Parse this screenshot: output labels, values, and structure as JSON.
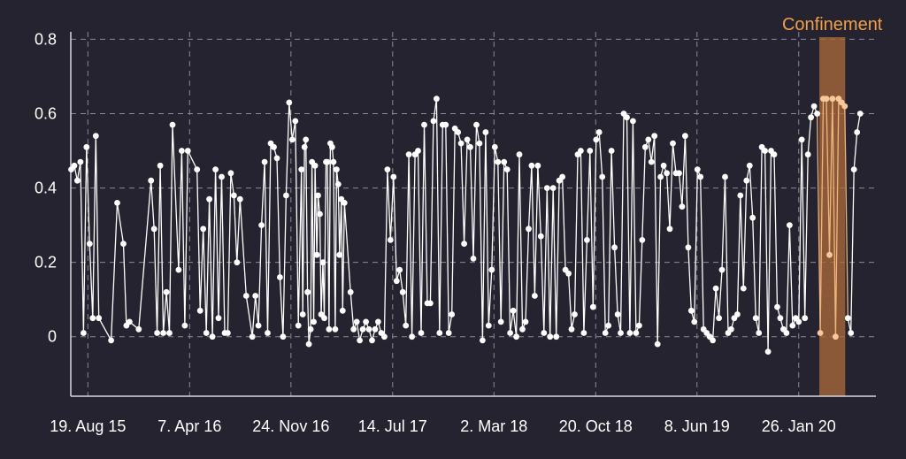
{
  "chart_data": {
    "type": "line",
    "title": "",
    "xlabel": "",
    "ylabel": "",
    "ylim": [
      -0.16,
      0.82
    ],
    "y_ticks": [
      "0",
      "0.2",
      "0.4",
      "0.6",
      "0.8"
    ],
    "y_tick_values": [
      0,
      0.2,
      0.4,
      0.6,
      0.8
    ],
    "x_ticks": [
      "19. Aug 15",
      "7. Apr 16",
      "24. Nov 16",
      "14. Jul 17",
      "2. Mar 18",
      "20. Oct 18",
      "8. Jun 19",
      "26. Jan 20"
    ],
    "x_tick_dates": [
      "2015-08-19",
      "2016-04-07",
      "2016-11-24",
      "2017-07-14",
      "2018-03-02",
      "2018-10-20",
      "2019-06-08",
      "2020-01-26"
    ],
    "xlim": [
      "2015-07-11",
      "2020-07-20"
    ],
    "grid": true,
    "band": {
      "label": "Confinement",
      "start": "2020-03-13",
      "end": "2020-05-11",
      "color": "#a8693a"
    },
    "series": [
      {
        "line_color": "#ffffff",
        "highlight_color": "#f7c99a",
        "points": [
          [
            "2015-07-12",
            0.45
          ],
          [
            "2015-07-19",
            0.46
          ],
          [
            "2015-07-26",
            0.42
          ],
          [
            "2015-08-02",
            0.47
          ],
          [
            "2015-08-09",
            0.01
          ],
          [
            "2015-08-16",
            0.51
          ],
          [
            "2015-08-23",
            0.25
          ],
          [
            "2015-08-30",
            0.05
          ],
          [
            "2015-09-06",
            0.54
          ],
          [
            "2015-09-13",
            0.05
          ],
          [
            "2015-10-11",
            -0.01
          ],
          [
            "2015-10-25",
            0.36
          ],
          [
            "2015-11-08",
            0.25
          ],
          [
            "2015-11-15",
            0.03
          ],
          [
            "2015-11-22",
            0.04
          ],
          [
            "2015-12-13",
            0.02
          ],
          [
            "2016-01-10",
            0.42
          ],
          [
            "2016-01-17",
            0.29
          ],
          [
            "2016-01-24",
            0.01
          ],
          [
            "2016-01-31",
            0.46
          ],
          [
            "2016-02-07",
            0.01
          ],
          [
            "2016-02-14",
            0.12
          ],
          [
            "2016-02-21",
            0.01
          ],
          [
            "2016-02-28",
            0.57
          ],
          [
            "2016-03-13",
            0.18
          ],
          [
            "2016-03-20",
            0.5
          ],
          [
            "2016-03-27",
            0.03
          ],
          [
            "2016-04-03",
            0.5
          ],
          [
            "2016-04-24",
            0.45
          ],
          [
            "2016-05-01",
            0.07
          ],
          [
            "2016-05-08",
            0.29
          ],
          [
            "2016-05-15",
            0.01
          ],
          [
            "2016-05-22",
            0.37
          ],
          [
            "2016-05-29",
            0.0
          ],
          [
            "2016-06-05",
            0.45
          ],
          [
            "2016-06-12",
            0.05
          ],
          [
            "2016-06-19",
            0.43
          ],
          [
            "2016-06-26",
            0.01
          ],
          [
            "2016-07-03",
            0.01
          ],
          [
            "2016-07-10",
            0.44
          ],
          [
            "2016-07-17",
            0.38
          ],
          [
            "2016-07-24",
            0.2
          ],
          [
            "2016-07-31",
            0.37
          ],
          [
            "2016-08-14",
            0.11
          ],
          [
            "2016-08-28",
            0.0
          ],
          [
            "2016-09-04",
            0.11
          ],
          [
            "2016-09-11",
            0.03
          ],
          [
            "2016-09-18",
            0.3
          ],
          [
            "2016-09-25",
            0.47
          ],
          [
            "2016-10-02",
            0.01
          ],
          [
            "2016-10-09",
            0.52
          ],
          [
            "2016-10-16",
            0.51
          ],
          [
            "2016-10-23",
            0.48
          ],
          [
            "2016-10-30",
            0.16
          ],
          [
            "2016-11-06",
            0.0
          ],
          [
            "2016-11-13",
            0.38
          ],
          [
            "2016-11-20",
            0.63
          ],
          [
            "2016-11-27",
            0.53
          ],
          [
            "2016-12-04",
            0.58
          ],
          [
            "2016-12-11",
            0.03
          ],
          [
            "2016-12-18",
            0.45
          ],
          [
            "2016-12-21",
            0.06
          ],
          [
            "2016-12-25",
            0.51
          ],
          [
            "2016-12-28",
            0.53
          ],
          [
            "2017-01-01",
            0.12
          ],
          [
            "2017-01-04",
            -0.02
          ],
          [
            "2017-01-08",
            0.02
          ],
          [
            "2017-01-11",
            0.47
          ],
          [
            "2017-01-15",
            0.04
          ],
          [
            "2017-01-18",
            0.46
          ],
          [
            "2017-01-22",
            0.22
          ],
          [
            "2017-01-25",
            0.38
          ],
          [
            "2017-01-29",
            0.33
          ],
          [
            "2017-02-01",
            0.06
          ],
          [
            "2017-02-05",
            0.2
          ],
          [
            "2017-02-08",
            0.05
          ],
          [
            "2017-02-12",
            0.47
          ],
          [
            "2017-02-15",
            0.47
          ],
          [
            "2017-02-19",
            0.02
          ],
          [
            "2017-02-22",
            0.52
          ],
          [
            "2017-02-26",
            0.51
          ],
          [
            "2017-03-01",
            0.47
          ],
          [
            "2017-03-05",
            0.02
          ],
          [
            "2017-03-08",
            0.45
          ],
          [
            "2017-03-12",
            0.41
          ],
          [
            "2017-03-15",
            0.22
          ],
          [
            "2017-03-19",
            0.37
          ],
          [
            "2017-03-22",
            0.07
          ],
          [
            "2017-03-26",
            0.36
          ],
          [
            "2017-04-09",
            0.12
          ],
          [
            "2017-04-16",
            0.02
          ],
          [
            "2017-04-23",
            0.04
          ],
          [
            "2017-04-30",
            -0.01
          ],
          [
            "2017-05-07",
            0.02
          ],
          [
            "2017-05-14",
            0.04
          ],
          [
            "2017-05-21",
            0.02
          ],
          [
            "2017-05-28",
            -0.01
          ],
          [
            "2017-06-04",
            0.02
          ],
          [
            "2017-06-11",
            0.04
          ],
          [
            "2017-06-18",
            0.01
          ],
          [
            "2017-06-25",
            0.0
          ],
          [
            "2017-07-02",
            0.45
          ],
          [
            "2017-07-09",
            0.26
          ],
          [
            "2017-07-16",
            0.43
          ],
          [
            "2017-07-23",
            0.15
          ],
          [
            "2017-07-30",
            0.18
          ],
          [
            "2017-08-06",
            0.12
          ],
          [
            "2017-08-13",
            0.03
          ],
          [
            "2017-08-20",
            0.49
          ],
          [
            "2017-08-27",
            0.0
          ],
          [
            "2017-09-03",
            0.49
          ],
          [
            "2017-09-10",
            0.5
          ],
          [
            "2017-09-17",
            0.01
          ],
          [
            "2017-09-24",
            0.57
          ],
          [
            "2017-10-01",
            0.09
          ],
          [
            "2017-10-08",
            0.09
          ],
          [
            "2017-10-15",
            0.58
          ],
          [
            "2017-10-22",
            0.64
          ],
          [
            "2017-10-29",
            0.01
          ],
          [
            "2017-11-05",
            0.57
          ],
          [
            "2017-11-12",
            0.57
          ],
          [
            "2017-11-19",
            0.01
          ],
          [
            "2017-11-26",
            0.06
          ],
          [
            "2017-12-03",
            0.56
          ],
          [
            "2017-12-10",
            0.55
          ],
          [
            "2017-12-17",
            0.52
          ],
          [
            "2017-12-24",
            0.25
          ],
          [
            "2017-12-31",
            0.53
          ],
          [
            "2018-01-07",
            0.51
          ],
          [
            "2018-01-14",
            0.21
          ],
          [
            "2018-01-21",
            0.57
          ],
          [
            "2018-01-28",
            0.52
          ],
          [
            "2018-02-04",
            -0.01
          ],
          [
            "2018-02-11",
            0.55
          ],
          [
            "2018-02-18",
            0.03
          ],
          [
            "2018-02-25",
            0.18
          ],
          [
            "2018-03-04",
            0.51
          ],
          [
            "2018-03-11",
            0.47
          ],
          [
            "2018-03-18",
            0.04
          ],
          [
            "2018-03-25",
            0.47
          ],
          [
            "2018-04-01",
            0.45
          ],
          [
            "2018-04-08",
            0.01
          ],
          [
            "2018-04-15",
            0.07
          ],
          [
            "2018-04-22",
            0.0
          ],
          [
            "2018-04-29",
            0.49
          ],
          [
            "2018-05-06",
            0.02
          ],
          [
            "2018-05-13",
            0.04
          ],
          [
            "2018-05-20",
            0.29
          ],
          [
            "2018-05-27",
            0.46
          ],
          [
            "2018-06-03",
            0.11
          ],
          [
            "2018-06-10",
            0.46
          ],
          [
            "2018-06-17",
            0.27
          ],
          [
            "2018-06-24",
            0.01
          ],
          [
            "2018-07-01",
            0.4
          ],
          [
            "2018-07-08",
            0.0
          ],
          [
            "2018-07-15",
            0.4
          ],
          [
            "2018-07-22",
            0.0
          ],
          [
            "2018-07-29",
            0.42
          ],
          [
            "2018-08-05",
            0.43
          ],
          [
            "2018-08-12",
            0.18
          ],
          [
            "2018-08-19",
            0.17
          ],
          [
            "2018-08-26",
            0.02
          ],
          [
            "2018-09-02",
            0.06
          ],
          [
            "2018-09-09",
            0.49
          ],
          [
            "2018-09-16",
            0.5
          ],
          [
            "2018-09-23",
            0.01
          ],
          [
            "2018-09-30",
            0.26
          ],
          [
            "2018-10-07",
            0.5
          ],
          [
            "2018-10-14",
            0.08
          ],
          [
            "2018-10-21",
            0.53
          ],
          [
            "2018-10-28",
            0.55
          ],
          [
            "2018-11-04",
            0.43
          ],
          [
            "2018-11-11",
            0.01
          ],
          [
            "2018-11-18",
            0.03
          ],
          [
            "2018-11-25",
            0.5
          ],
          [
            "2018-12-02",
            0.24
          ],
          [
            "2018-12-09",
            0.06
          ],
          [
            "2018-12-16",
            0.01
          ],
          [
            "2018-12-23",
            0.6
          ],
          [
            "2018-12-30",
            0.59
          ],
          [
            "2019-01-06",
            0.01
          ],
          [
            "2019-01-13",
            0.58
          ],
          [
            "2019-01-20",
            0.01
          ],
          [
            "2019-01-27",
            0.03
          ],
          [
            "2019-02-03",
            0.26
          ],
          [
            "2019-02-10",
            0.51
          ],
          [
            "2019-02-17",
            0.53
          ],
          [
            "2019-02-24",
            0.47
          ],
          [
            "2019-03-03",
            0.54
          ],
          [
            "2019-03-10",
            -0.02
          ],
          [
            "2019-03-17",
            0.43
          ],
          [
            "2019-03-24",
            0.46
          ],
          [
            "2019-03-31",
            0.44
          ],
          [
            "2019-04-07",
            0.29
          ],
          [
            "2019-04-14",
            0.52
          ],
          [
            "2019-04-21",
            0.44
          ],
          [
            "2019-04-28",
            0.44
          ],
          [
            "2019-05-05",
            0.35
          ],
          [
            "2019-05-12",
            0.54
          ],
          [
            "2019-05-19",
            0.24
          ],
          [
            "2019-05-26",
            0.07
          ],
          [
            "2019-06-02",
            0.04
          ],
          [
            "2019-06-09",
            0.45
          ],
          [
            "2019-06-16",
            0.43
          ],
          [
            "2019-06-23",
            0.02
          ],
          [
            "2019-06-30",
            0.01
          ],
          [
            "2019-07-07",
            0.0
          ],
          [
            "2019-07-14",
            -0.01
          ],
          [
            "2019-07-21",
            0.13
          ],
          [
            "2019-07-28",
            0.05
          ],
          [
            "2019-08-04",
            0.18
          ],
          [
            "2019-08-11",
            0.43
          ],
          [
            "2019-08-18",
            0.01
          ],
          [
            "2019-08-25",
            0.02
          ],
          [
            "2019-09-01",
            0.05
          ],
          [
            "2019-09-08",
            0.06
          ],
          [
            "2019-09-15",
            0.38
          ],
          [
            "2019-09-22",
            0.13
          ],
          [
            "2019-09-29",
            0.42
          ],
          [
            "2019-10-06",
            0.46
          ],
          [
            "2019-10-13",
            0.32
          ],
          [
            "2019-10-20",
            0.05
          ],
          [
            "2019-10-27",
            0.01
          ],
          [
            "2019-11-03",
            0.51
          ],
          [
            "2019-11-10",
            0.5
          ],
          [
            "2019-11-17",
            -0.04
          ],
          [
            "2019-11-24",
            0.5
          ],
          [
            "2019-12-01",
            0.49
          ],
          [
            "2019-12-08",
            0.08
          ],
          [
            "2019-12-15",
            0.05
          ],
          [
            "2019-12-22",
            0.02
          ],
          [
            "2019-12-29",
            0.01
          ],
          [
            "2020-01-05",
            0.3
          ],
          [
            "2020-01-12",
            0.03
          ],
          [
            "2020-01-19",
            0.05
          ],
          [
            "2020-01-26",
            0.04
          ],
          [
            "2020-02-02",
            0.53
          ],
          [
            "2020-02-09",
            0.05
          ],
          [
            "2020-02-16",
            0.49
          ],
          [
            "2020-02-23",
            0.59
          ],
          [
            "2020-03-01",
            0.62
          ],
          [
            "2020-03-08",
            0.6
          ],
          [
            "2020-03-15",
            0.01
          ],
          [
            "2020-03-22",
            0.64
          ],
          [
            "2020-03-29",
            0.64
          ],
          [
            "2020-04-05",
            0.22
          ],
          [
            "2020-04-12",
            0.64
          ],
          [
            "2020-04-19",
            0.0
          ],
          [
            "2020-04-26",
            0.64
          ],
          [
            "2020-05-03",
            0.63
          ],
          [
            "2020-05-10",
            0.62
          ],
          [
            "2020-05-17",
            0.05
          ],
          [
            "2020-05-24",
            0.01
          ],
          [
            "2020-05-31",
            0.45
          ],
          [
            "2020-06-07",
            0.55
          ],
          [
            "2020-06-14",
            0.6
          ]
        ]
      }
    ]
  }
}
